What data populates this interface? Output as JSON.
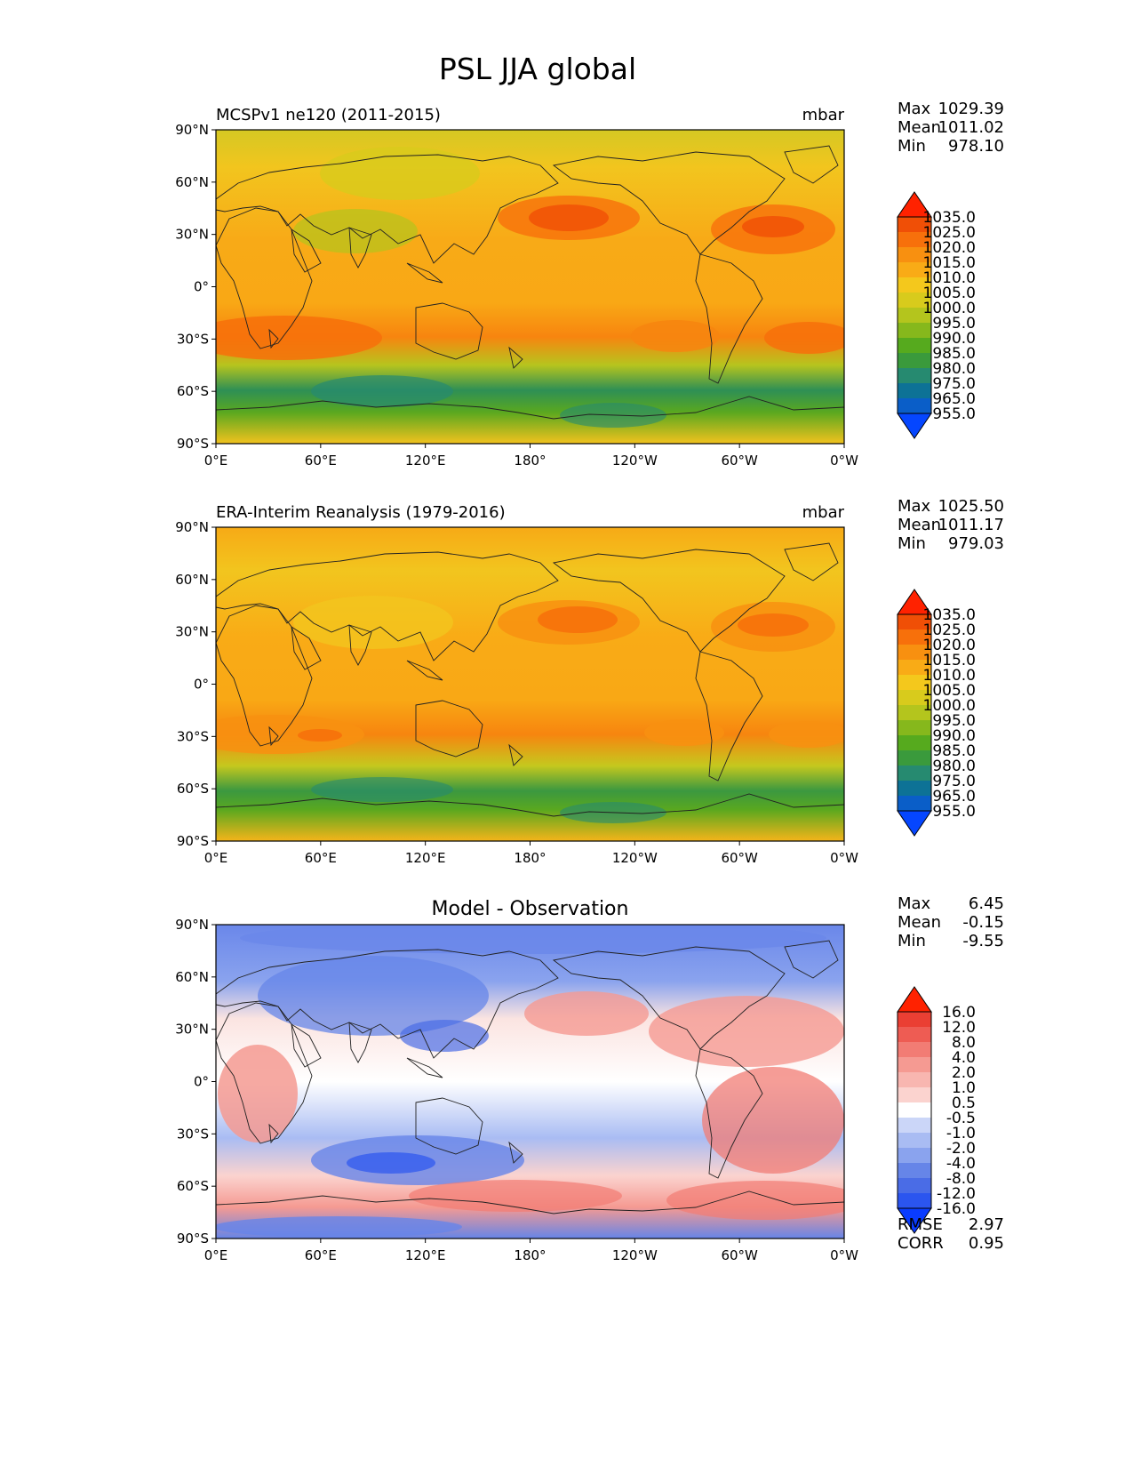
{
  "figure_title": "PSL JJA global",
  "axes": {
    "lat_labels": [
      "90°N",
      "60°N",
      "30°N",
      "0°",
      "30°S",
      "60°S",
      "90°S"
    ],
    "lon_labels": [
      "0°E",
      "60°E",
      "120°E",
      "180°",
      "120°W",
      "60°W",
      "0°W"
    ]
  },
  "panels": [
    {
      "id": "model",
      "title_left": "MCSPv1 ne120 (2011-2015)",
      "title_center": "",
      "units": "mbar",
      "stats": [
        {
          "label": "Max",
          "value": "1029.39"
        },
        {
          "label": "Mean",
          "value": "1011.02"
        },
        {
          "label": "Min",
          "value": "978.10"
        }
      ],
      "colorbar_labels": [
        "955.0",
        "965.0",
        "975.0",
        "980.0",
        "985.0",
        "990.0",
        "995.0",
        "1000.0",
        "1005.0",
        "1010.0",
        "1015.0",
        "1020.0",
        "1025.0",
        "1035.0"
      ],
      "colorbar_colors": [
        "#0546ff",
        "#0a5ec8",
        "#0d7296",
        "#268a70",
        "#3a9a3c",
        "#56aa1e",
        "#86b81c",
        "#b4c51d",
        "#d8cb1c",
        "#f4c81c",
        "#f9ab16",
        "#f89010",
        "#f7700b",
        "#f04f06",
        "#ff2200"
      ],
      "extra_stats": []
    },
    {
      "id": "obs",
      "title_left": "ERA-Interim Reanalysis (1979-2016)",
      "title_center": "",
      "units": "mbar",
      "stats": [
        {
          "label": "Max",
          "value": "1025.50"
        },
        {
          "label": "Mean",
          "value": "1011.17"
        },
        {
          "label": "Min",
          "value": "979.03"
        }
      ],
      "colorbar_labels": [
        "955.0",
        "965.0",
        "975.0",
        "980.0",
        "985.0",
        "990.0",
        "995.0",
        "1000.0",
        "1005.0",
        "1010.0",
        "1015.0",
        "1020.0",
        "1025.0",
        "1035.0"
      ],
      "colorbar_colors": [
        "#0546ff",
        "#0a5ec8",
        "#0d7296",
        "#268a70",
        "#3a9a3c",
        "#56aa1e",
        "#86b81c",
        "#b4c51d",
        "#d8cb1c",
        "#f4c81c",
        "#f9ab16",
        "#f89010",
        "#f7700b",
        "#f04f06",
        "#ff2200"
      ],
      "extra_stats": []
    },
    {
      "id": "diff",
      "title_left": "",
      "title_center": "Model - Observation",
      "units": "",
      "stats": [
        {
          "label": "Max",
          "value": "6.45"
        },
        {
          "label": "Mean",
          "value": "-0.15"
        },
        {
          "label": "Min",
          "value": "-9.55"
        }
      ],
      "colorbar_labels": [
        "-16.0",
        "-12.0",
        "-8.0",
        "-4.0",
        "-2.0",
        "-1.0",
        "-0.5",
        "0.5",
        "1.0",
        "2.0",
        "4.0",
        "8.0",
        "12.0",
        "16.0"
      ],
      "colorbar_colors": [
        "#0a3cff",
        "#2b55ef",
        "#4a6ce6",
        "#6685e8",
        "#8aa3ee",
        "#a9bcf3",
        "#cbd6f8",
        "#ffffff",
        "#fbd3cf",
        "#f8b6b0",
        "#f59a92",
        "#f27c74",
        "#ee5c53",
        "#ea3f33",
        "#ff2200"
      ],
      "extra_stats": [
        {
          "label": "RMSE",
          "value": "2.97"
        },
        {
          "label": "CORR",
          "value": "0.95"
        }
      ]
    }
  ]
}
